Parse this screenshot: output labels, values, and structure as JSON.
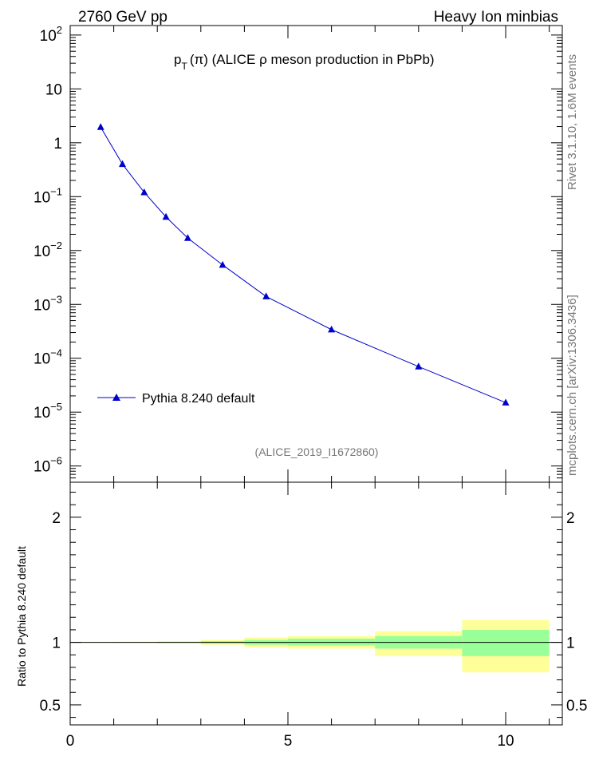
{
  "header": {
    "left": "2760 GeV pp",
    "right": "Heavy Ion minbias"
  },
  "side_labels": {
    "rivet": "Rivet 3.1.10, 1.6M events",
    "mcplots": "mcplots.cern.ch [arXiv:1306.3436]"
  },
  "chart_data": [
    {
      "type": "line",
      "title": {
        "p": "p",
        "sub": "T",
        "rest": "(π) (ALICE ρ meson production in PbPb)"
      },
      "annotation": "(ALICE_2019_I1672860)",
      "yscale": "log",
      "xlim": [
        0,
        11.3
      ],
      "ylim": [
        5e-07,
        150
      ],
      "y_ticks": [
        {
          "value": 100,
          "base": "10",
          "exp": "2"
        },
        {
          "value": 10,
          "base": "10",
          "exp": ""
        },
        {
          "value": 1,
          "base": "1",
          "exp": ""
        },
        {
          "value": 0.1,
          "base": "10",
          "exp": "−1"
        },
        {
          "value": 0.01,
          "base": "10",
          "exp": "−2"
        },
        {
          "value": 0.001,
          "base": "10",
          "exp": "−3"
        },
        {
          "value": 0.0001,
          "base": "10",
          "exp": "−4"
        },
        {
          "value": 1e-05,
          "base": "10",
          "exp": "−5"
        },
        {
          "value": 1e-06,
          "base": "10",
          "exp": "−6"
        }
      ],
      "legend": {
        "label": "Pythia 8.240 default",
        "placement": "bottom-left"
      },
      "series": [
        {
          "name": "Pythia 8.240 default",
          "color": "#0000cc",
          "marker": "triangle",
          "x": [
            0.7,
            1.2,
            1.7,
            2.2,
            2.7,
            3.5,
            4.5,
            6.0,
            8.0,
            10.0
          ],
          "y": [
            1.95,
            0.4,
            0.12,
            0.042,
            0.017,
            0.0054,
            0.0014,
            0.00034,
            7e-05,
            1.5e-05
          ]
        }
      ]
    },
    {
      "type": "area",
      "ylabel": "Ratio to Pythia 8.240 default",
      "xlim": [
        0,
        11.3
      ],
      "ylim": [
        0.34,
        2.28
      ],
      "x_ticks": [
        0,
        5,
        10
      ],
      "y_ticks": [
        0.5,
        1,
        2
      ],
      "reference_line": 1.0,
      "bands": {
        "yellow_color": "#ffff99",
        "green_color": "#99ff99",
        "bins": [
          {
            "x0": 0.0,
            "x1": 1.0,
            "y_lo": 0.997,
            "y_hi": 1.003,
            "g_lo": 0.999,
            "g_hi": 1.001
          },
          {
            "x0": 1.0,
            "x1": 2.0,
            "y_lo": 0.995,
            "y_hi": 1.005,
            "g_lo": 0.998,
            "g_hi": 1.002
          },
          {
            "x0": 2.0,
            "x1": 3.0,
            "y_lo": 0.99,
            "y_hi": 1.01,
            "g_lo": 0.996,
            "g_hi": 1.004
          },
          {
            "x0": 3.0,
            "x1": 4.0,
            "y_lo": 0.98,
            "y_hi": 1.02,
            "g_lo": 0.99,
            "g_hi": 1.01
          },
          {
            "x0": 4.0,
            "x1": 5.0,
            "y_lo": 0.96,
            "y_hi": 1.04,
            "g_lo": 0.98,
            "g_hi": 1.02
          },
          {
            "x0": 5.0,
            "x1": 7.0,
            "y_lo": 0.95,
            "y_hi": 1.05,
            "g_lo": 0.975,
            "g_hi": 1.03
          },
          {
            "x0": 7.0,
            "x1": 9.0,
            "y_lo": 0.89,
            "y_hi": 1.09,
            "g_lo": 0.95,
            "g_hi": 1.05
          },
          {
            "x0": 9.0,
            "x1": 11.0,
            "y_lo": 0.76,
            "y_hi": 1.18,
            "g_lo": 0.89,
            "g_hi": 1.1
          }
        ]
      }
    }
  ]
}
